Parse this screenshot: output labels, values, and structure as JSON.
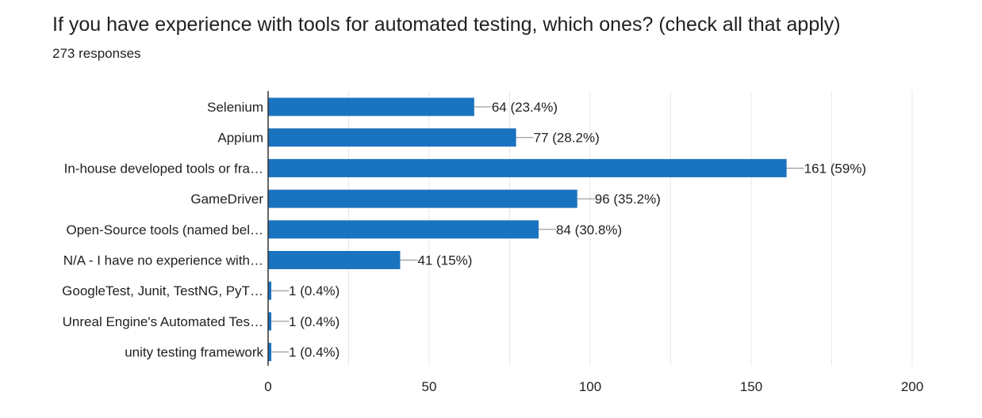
{
  "chart_data": {
    "type": "bar",
    "orientation": "horizontal",
    "title": "If you have experience with tools for automated testing, which ones? (check all that apply)",
    "subtitle": "273 responses",
    "categories": [
      "Selenium",
      "Appium",
      "In-house developed tools or fra…",
      "GameDriver",
      "Open-Source tools (named bel…",
      "N/A - I have no experience with…",
      "GoogleTest, Junit, TestNG, PyT…",
      "Unreal Engine's Automated Tes…",
      "unity testing framework"
    ],
    "values": [
      64,
      77,
      161,
      96,
      84,
      41,
      1,
      1,
      1
    ],
    "data_labels": [
      "64 (23.4%)",
      "77 (28.2%)",
      "161 (59%)",
      "96 (35.2%)",
      "84 (30.8%)",
      "41 (15%)",
      "1 (0.4%)",
      "1 (0.4%)",
      "1 (0.4%)"
    ],
    "xlim": [
      0,
      200
    ],
    "xticks": [
      "0",
      "50",
      "100",
      "150",
      "200"
    ],
    "xtick_values": [
      0,
      50,
      100,
      150,
      200
    ],
    "grid": true,
    "bar_color": "#1a73be",
    "grid_color": "#e8e8e8",
    "axis_color": "#333333",
    "leader_color": "#888888"
  }
}
